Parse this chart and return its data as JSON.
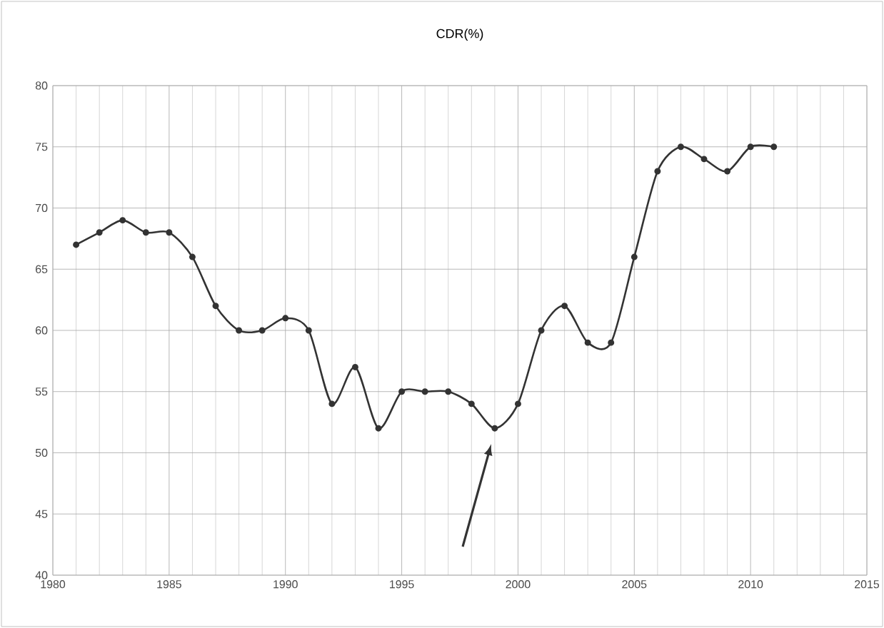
{
  "chart_data": {
    "type": "line",
    "title": "CDR(%)",
    "x": [
      1981,
      1982,
      1983,
      1984,
      1985,
      1986,
      1987,
      1988,
      1989,
      1990,
      1991,
      1992,
      1993,
      1994,
      1995,
      1996,
      1997,
      1998,
      1999,
      2000,
      2001,
      2002,
      2003,
      2004,
      2005,
      2006,
      2007,
      2008,
      2009,
      2010,
      2011
    ],
    "series": [
      {
        "color": "#333333",
        "values": [
          67,
          68,
          69,
          68,
          68,
          66,
          62,
          60,
          60,
          61,
          60,
          54,
          57,
          52,
          55,
          55,
          55,
          54,
          52,
          54,
          60,
          62,
          59,
          59,
          66,
          73,
          75,
          74,
          73,
          75,
          75
        ]
      }
    ],
    "xlim": [
      1980,
      2015
    ],
    "xticks": [
      1980,
      1985,
      1990,
      1995,
      2000,
      2005,
      2010,
      2015
    ],
    "ylim": [
      40,
      80
    ],
    "yticks": [
      40,
      45,
      50,
      55,
      60,
      65,
      70,
      75,
      80
    ],
    "grid": true,
    "marker": "circle",
    "line_style": "solid"
  }
}
